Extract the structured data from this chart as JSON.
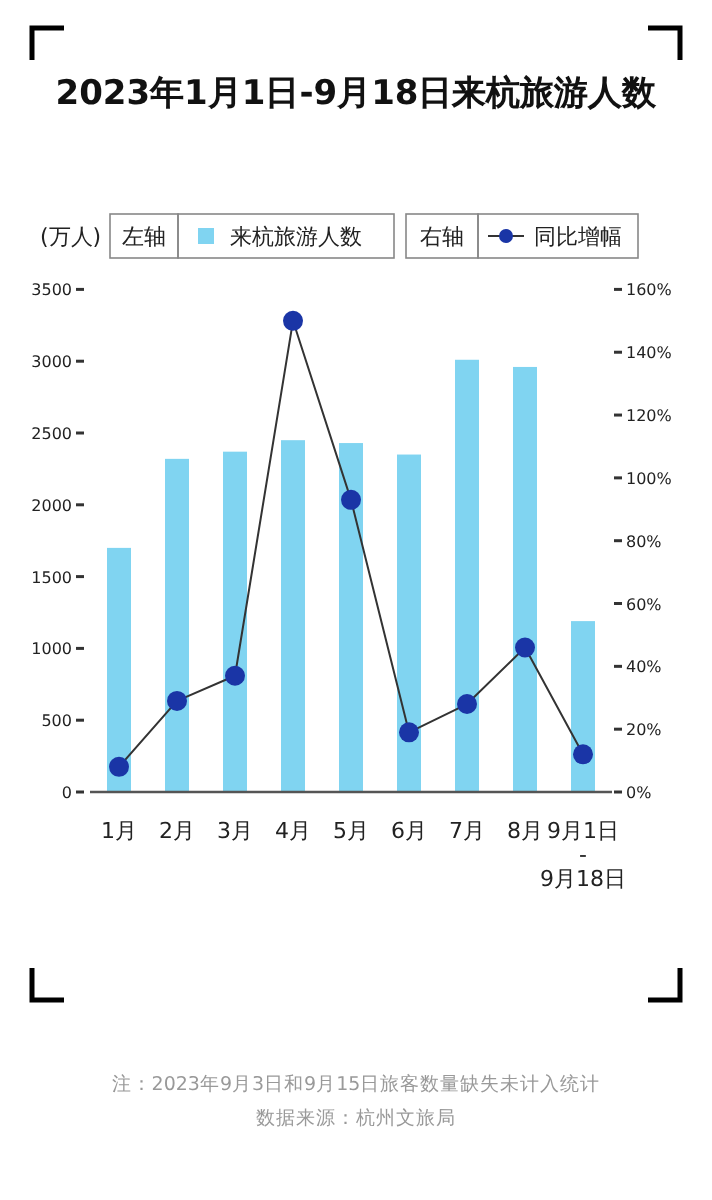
{
  "chart_data": {
    "type": "bar",
    "title": "2023年1月1日-9月18日来杭旅游人数",
    "ylabel": "(万人)",
    "categories": [
      "1月",
      "2月",
      "3月",
      "4月",
      "5月",
      "6月",
      "7月",
      "8月",
      "9月1日\n-\n9月18日"
    ],
    "series": [
      {
        "name": "来杭旅游人数",
        "color": "#80d4f1",
        "values": [
          1700,
          2320,
          2370,
          2450,
          2430,
          2350,
          3010,
          2960,
          1190
        ]
      },
      {
        "name": "同比增幅",
        "type": "line",
        "axis": "y2",
        "color": "#1a35a6",
        "marker": "circle",
        "values": [
          8,
          29,
          37,
          150,
          93,
          19,
          28,
          46,
          12
        ]
      }
    ],
    "ylim": [
      0,
      3500
    ],
    "yticks": [
      0,
      500,
      1000,
      1500,
      2000,
      2500,
      3000,
      3500
    ],
    "y2lim": [
      0,
      160
    ],
    "y2ticks": [
      {
        "value": 0,
        "label": "0%"
      },
      {
        "value": 20,
        "label": "20%"
      },
      {
        "value": 40,
        "label": "40%"
      },
      {
        "value": 60,
        "label": "60%"
      },
      {
        "value": 80,
        "label": "80%"
      },
      {
        "value": 100,
        "label": "100%"
      },
      {
        "value": 120,
        "label": "120%"
      },
      {
        "value": 140,
        "label": "140%"
      },
      {
        "value": 160,
        "label": "160%"
      }
    ],
    "legend": "top",
    "grid": false,
    "annotations": [
      "左轴",
      "右轴",
      "注：2023年9月3日和9月15日旅客数量缺失未计入统计",
      "数据来源：杭州文旅局"
    ]
  }
}
